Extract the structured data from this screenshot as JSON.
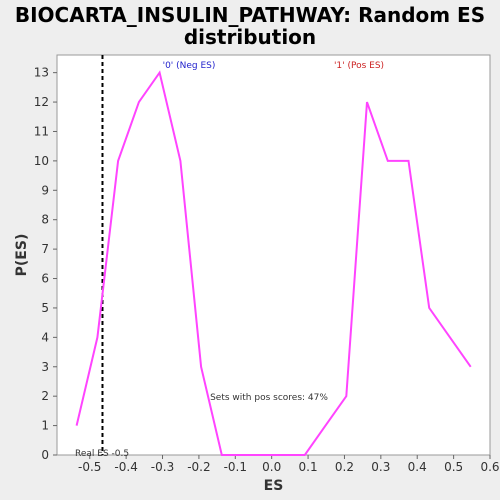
{
  "chart_data": {
    "type": "line",
    "title_line1": "BIOCARTA_INSULIN_PATHWAY: Random ES",
    "title_line2": "distribution",
    "xlabel": "ES",
    "ylabel": "P(ES)",
    "xlim": [
      -0.59,
      0.6
    ],
    "ylim": [
      0,
      13.6
    ],
    "x_ticks": [
      -0.5,
      -0.4,
      -0.3,
      -0.2,
      -0.1,
      0.0,
      0.1,
      0.2,
      0.3,
      0.4,
      0.5,
      0.6
    ],
    "x_tick_labels": [
      "-0.5",
      "-0.4",
      "-0.3",
      "-0.2",
      "-0.1",
      "0.0",
      "0.1",
      "0.2",
      "0.3",
      "0.4",
      "0.5",
      "0.6"
    ],
    "y_ticks": [
      0,
      1,
      2,
      3,
      4,
      5,
      6,
      7,
      8,
      9,
      10,
      11,
      12,
      13
    ],
    "y_tick_labels": [
      "0",
      "1",
      "2",
      "3",
      "4",
      "5",
      "6",
      "7",
      "8",
      "9",
      "10",
      "11",
      "12",
      "13"
    ],
    "grid": false,
    "series": [
      {
        "color": "#ff44ff",
        "x": [
          -0.536,
          -0.479,
          -0.422,
          -0.365,
          -0.308,
          -0.251,
          -0.194,
          -0.137,
          -0.08,
          -0.023,
          0.034,
          0.091,
          0.148,
          0.205,
          0.262,
          0.319,
          0.376,
          0.433,
          0.547
        ],
        "y": [
          1,
          4,
          10,
          12,
          13,
          10,
          3,
          0,
          0,
          0,
          0,
          0,
          1,
          2,
          12,
          10,
          10,
          5,
          3
        ]
      }
    ],
    "real_es": {
      "value": -0.465,
      "label": "Real ES -0.5",
      "color": "#000000"
    },
    "annotations": {
      "neg_label": "'0' (Neg ES)",
      "neg_color": "#2222cc",
      "pos_label": "'1' (Pos ES)",
      "pos_color": "#cc2222",
      "pos_scores_text": "Sets with pos scores: 47%"
    }
  }
}
